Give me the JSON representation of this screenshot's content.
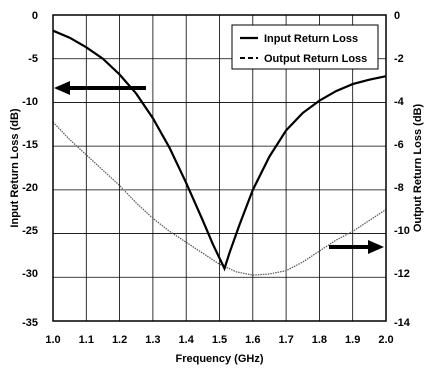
{
  "chart_data": {
    "type": "line",
    "xlabel": "Frequency (GHz)",
    "ylabel_left": "Input Return Loss (dB)",
    "ylabel_right": "Output Return Loss (dB)",
    "xlim": [
      1.0,
      2.0
    ],
    "ylim_left": [
      -35,
      0
    ],
    "ylim_right": [
      -14,
      0
    ],
    "x_ticks": [
      "1.0",
      "1.1",
      "1.2",
      "1.3",
      "1.4",
      "1.5",
      "1.6",
      "1.7",
      "1.8",
      "1.9",
      "2.0"
    ],
    "y_ticks_left": [
      "0",
      "-5",
      "-10",
      "-15",
      "-20",
      "-25",
      "-30",
      "-35"
    ],
    "y_ticks_right": [
      "0",
      "-2",
      "-4",
      "-6",
      "-8",
      "-10",
      "-12",
      "-14"
    ],
    "grid": true,
    "legend_position": "top-right",
    "series": [
      {
        "name": "Input Return Loss",
        "axis": "left",
        "style": "solid",
        "color": "#000000",
        "x": [
          1.0,
          1.05,
          1.1,
          1.15,
          1.2,
          1.25,
          1.3,
          1.35,
          1.4,
          1.45,
          1.48,
          1.5,
          1.515,
          1.53,
          1.56,
          1.6,
          1.65,
          1.7,
          1.75,
          1.8,
          1.85,
          1.9,
          1.95,
          2.0
        ],
        "y": [
          -1.8,
          -2.6,
          -3.7,
          -5.0,
          -6.8,
          -9.0,
          -11.8,
          -15.2,
          -19.2,
          -23.5,
          -26.2,
          -27.8,
          -29.0,
          -27.2,
          -24.0,
          -20.0,
          -16.2,
          -13.2,
          -11.2,
          -9.8,
          -8.7,
          -7.9,
          -7.4,
          -7.0
        ]
      },
      {
        "name": "Output Return Loss",
        "axis": "right",
        "style": "dashed",
        "color": "#555555",
        "x": [
          1.0,
          1.05,
          1.1,
          1.15,
          1.2,
          1.25,
          1.3,
          1.35,
          1.4,
          1.45,
          1.5,
          1.55,
          1.6,
          1.65,
          1.7,
          1.75,
          1.8,
          1.85,
          1.9,
          1.95,
          2.0
        ],
        "y": [
          -4.9,
          -5.7,
          -6.4,
          -7.1,
          -7.8,
          -8.6,
          -9.3,
          -9.9,
          -10.4,
          -10.9,
          -11.4,
          -11.75,
          -11.9,
          -11.85,
          -11.7,
          -11.3,
          -10.8,
          -10.3,
          -9.9,
          -9.4,
          -8.9
        ]
      }
    ]
  }
}
